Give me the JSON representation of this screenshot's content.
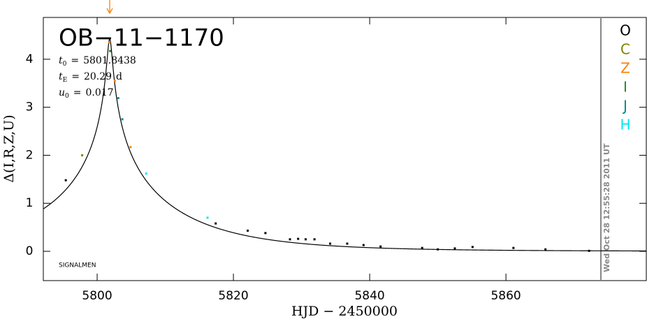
{
  "chart_data": {
    "type": "scatter",
    "title": "OB−11−1170",
    "xlabel": "HJD − 2450000",
    "ylabel": "Δ(I,R,Z,U)",
    "stamp": "Wed Oct 28 12:55:28 2011 UT",
    "credit": "SIGNALMEN",
    "params": [
      {
        "symbol": "t",
        "subscript": "0",
        "sign": "=",
        "value": 5801.8438
      },
      {
        "symbol": "t",
        "subscript": "E",
        "sign": "=",
        "value": 20.29,
        "unit": "d"
      },
      {
        "symbol": "u",
        "subscript": "0",
        "sign": "=",
        "value": 0.017
      }
    ],
    "xlim": [
      5792.1,
      5880.6
    ],
    "ylim": [
      -0.61,
      4.87
    ],
    "xticks": [
      5800,
      5820,
      5840,
      5860
    ],
    "yticks": [
      0,
      1,
      2,
      3,
      4
    ],
    "series": [
      {
        "name": "O",
        "color": "#000000",
        "x": [
          5795.4,
          5817.4,
          5822.1,
          5824.7,
          5828.3,
          5829.5,
          5830.6,
          5831.9,
          5834.2,
          5836.7,
          5839.1,
          5841.6,
          5847.7,
          5850.0,
          5852.5,
          5855.1,
          5861.1,
          5865.8,
          5872.2
        ],
        "values": [
          1.48,
          0.58,
          0.43,
          0.38,
          0.25,
          0.26,
          0.25,
          0.25,
          0.16,
          0.16,
          0.13,
          0.1,
          0.07,
          0.04,
          0.06,
          0.09,
          0.07,
          0.04,
          0.01
        ]
      },
      {
        "name": "C",
        "color": "#808000",
        "x": [
          5797.8
        ],
        "values": [
          2.0
        ]
      },
      {
        "name": "Z",
        "color": "#ff7f00",
        "x": [
          5801.8,
          5802.6,
          5804.9
        ],
        "values": [
          4.35,
          3.55,
          2.17
        ]
      },
      {
        "name": "I",
        "color": "#228b22",
        "x": [
          5801.9
        ],
        "values": [
          4.17
        ]
      },
      {
        "name": "J",
        "color": "#008b8b",
        "x": [
          5803.1,
          5803.7
        ],
        "values": [
          3.19,
          2.75
        ]
      },
      {
        "name": "H",
        "color": "#00e5ee",
        "x": [
          5807.2,
          5816.2
        ],
        "values": [
          1.62,
          0.7
        ]
      }
    ]
  }
}
